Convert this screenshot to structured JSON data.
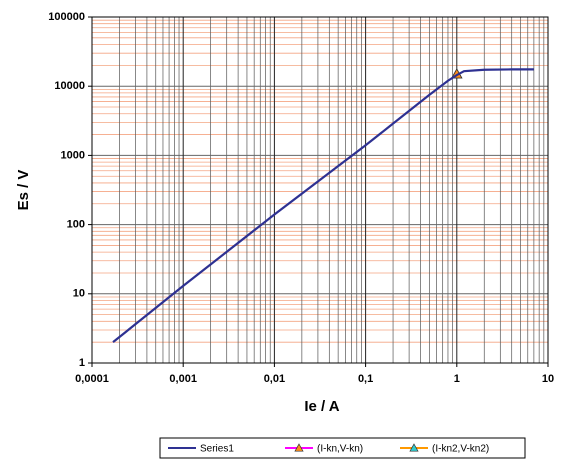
{
  "chart_data": {
    "type": "line",
    "log_x": true,
    "log_y": true,
    "grid": true,
    "minor_grid": true,
    "x_label": "Ie / A",
    "y_label": "Es / V",
    "xlim": [
      0.0001,
      10
    ],
    "ylim": [
      1,
      100000
    ],
    "xticks": [
      {
        "value": 0.0001,
        "label": "0,0001"
      },
      {
        "value": 0.001,
        "label": "0,001"
      },
      {
        "value": 0.01,
        "label": "0,01"
      },
      {
        "value": 0.1,
        "label": "0,1"
      },
      1,
      10
    ],
    "yticks": [
      1,
      10,
      100,
      1000,
      10000,
      100000
    ],
    "legend": "bottom",
    "series": [
      {
        "name": "Series1",
        "color": "#2e3192",
        "marker": "none",
        "x": [
          0.00017,
          0.001,
          0.01,
          0.1,
          0.5,
          0.8,
          1,
          1.2,
          2,
          4,
          7
        ],
        "values": [
          2,
          13,
          140,
          1400,
          7500,
          12000,
          14500,
          16500,
          17300,
          17500,
          17500
        ]
      },
      {
        "name": "(I-kn,V-kn)",
        "color": "#ff00ff",
        "marker": "triangle",
        "marker_color": "#ff8c1a",
        "x": [
          1
        ],
        "values": [
          15000
        ]
      },
      {
        "name": "(I-kn2,V-kn2)",
        "color": "#ff9900",
        "marker": "triangle",
        "marker_color": "#33cccc",
        "x": [
          1
        ],
        "values": [
          15000
        ]
      }
    ]
  }
}
